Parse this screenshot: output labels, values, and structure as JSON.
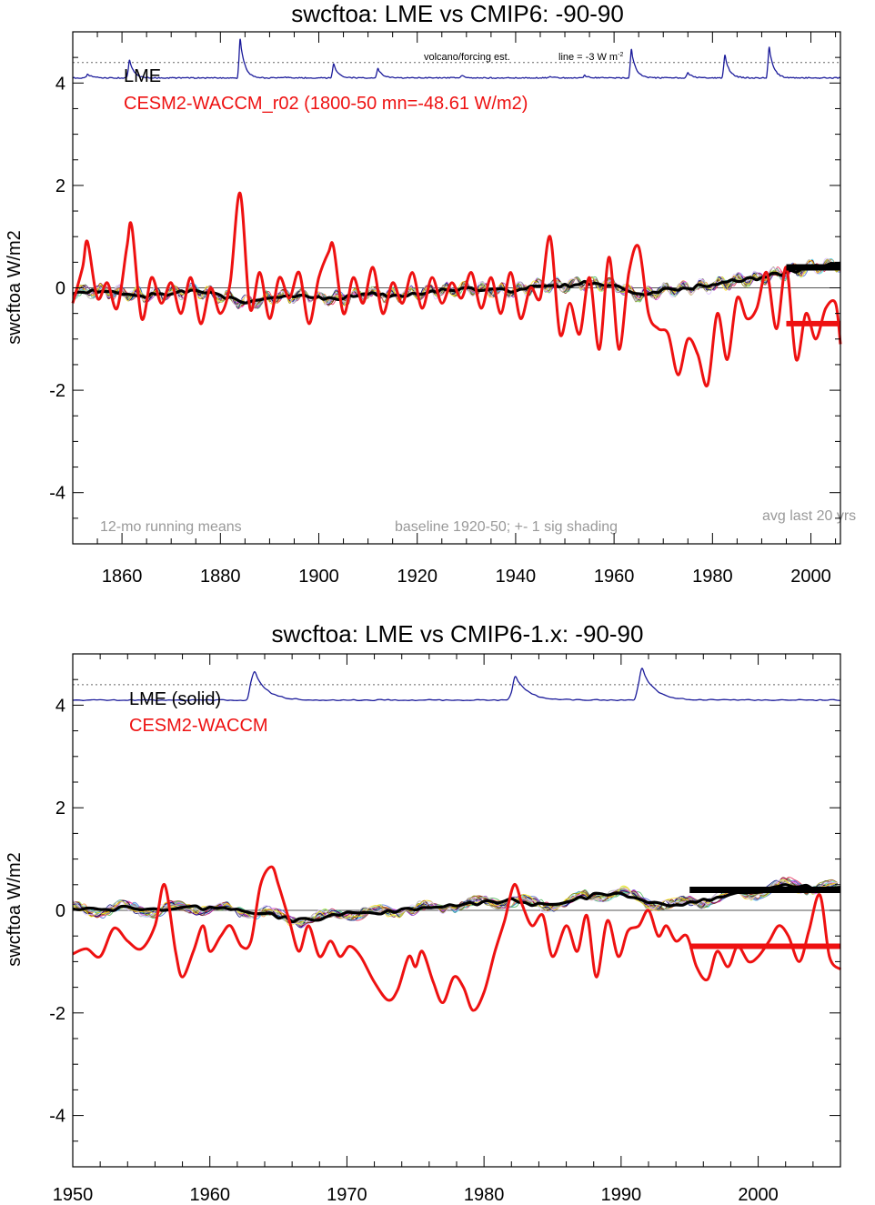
{
  "colors": {
    "lme": "#000000",
    "cesm": "#ee1111",
    "volcano": "#1a1a9a",
    "note": "#999999",
    "zero": "#555555"
  },
  "chart_data": [
    {
      "type": "line",
      "title": "swcftoa: LME vs CMIP6: -90-90",
      "xlabel": "",
      "ylabel": "swcftoa W/m2",
      "xlim": [
        1850,
        2006
      ],
      "ylim": [
        -5,
        5
      ],
      "xticks": [
        1860,
        1880,
        1900,
        1920,
        1940,
        1960,
        1980,
        2000
      ],
      "yticks": [
        -4,
        -2,
        0,
        2,
        4
      ],
      "legend": {
        "lme": "LME",
        "cesm": "CESM2-WACCM_r02 (1800-50 mn=-48.61 W/m2)"
      },
      "notes": {
        "volcano_label": "volcano/forcing est.",
        "volcano_line_label": "line = -3 W m",
        "volcano_line_sup": "-2",
        "running_means": "12-mo running means",
        "baseline": "baseline 1920-50; +- 1 sig shading",
        "avg_last": "avg last 20 yrs"
      },
      "volcano_baseline": 4.4,
      "volcano_events": [
        {
          "year": 1853,
          "peak": 4.18
        },
        {
          "year": 1861.5,
          "peak": 4.45
        },
        {
          "year": 1884,
          "peak": 4.85
        },
        {
          "year": 1893,
          "peak": 4.12
        },
        {
          "year": 1903,
          "peak": 4.38
        },
        {
          "year": 1912,
          "peak": 4.28
        },
        {
          "year": 1929,
          "peak": 4.15
        },
        {
          "year": 1947,
          "peak": 4.12
        },
        {
          "year": 1954,
          "peak": 4.15
        },
        {
          "year": 1963.5,
          "peak": 4.65
        },
        {
          "year": 1975,
          "peak": 4.2
        },
        {
          "year": 1982.5,
          "peak": 4.55
        },
        {
          "year": 1991.5,
          "peak": 4.7
        }
      ],
      "series": [
        {
          "name": "LME ensemble mean",
          "x": [
            1850,
            1855,
            1860,
            1865,
            1870,
            1875,
            1880,
            1885,
            1890,
            1895,
            1900,
            1905,
            1910,
            1915,
            1920,
            1925,
            1930,
            1935,
            1940,
            1945,
            1950,
            1955,
            1960,
            1965,
            1970,
            1975,
            1980,
            1985,
            1990,
            1995,
            2000,
            2005
          ],
          "y": [
            -0.1,
            -0.05,
            -0.1,
            -0.15,
            -0.1,
            -0.05,
            -0.15,
            -0.3,
            -0.2,
            -0.15,
            -0.2,
            -0.2,
            -0.1,
            -0.15,
            -0.1,
            -0.05,
            0.0,
            -0.05,
            -0.05,
            0.05,
            0.05,
            0.1,
            0.05,
            -0.15,
            -0.05,
            0.0,
            0.05,
            0.15,
            0.2,
            0.3,
            0.4,
            0.45
          ]
        },
        {
          "name": "CESM2-WACCM",
          "x": [
            1850,
            1852,
            1853,
            1855,
            1857,
            1859,
            1861,
            1862,
            1864,
            1866,
            1868,
            1870,
            1872,
            1874,
            1876,
            1878,
            1880,
            1882,
            1884,
            1886,
            1888,
            1890,
            1892,
            1894,
            1896,
            1898,
            1900,
            1902,
            1903,
            1905,
            1907,
            1909,
            1911,
            1913,
            1915,
            1917,
            1919,
            1921,
            1923,
            1925,
            1927,
            1929,
            1931,
            1933,
            1935,
            1937,
            1939,
            1941,
            1943,
            1945,
            1947,
            1949,
            1951,
            1953,
            1955,
            1957,
            1959,
            1961,
            1963,
            1965,
            1967,
            1969,
            1971,
            1973,
            1975,
            1977,
            1979,
            1981,
            1983,
            1985,
            1987,
            1989,
            1991,
            1993,
            1995,
            1997,
            1999,
            2001,
            2003,
            2005,
            2006
          ],
          "y": [
            -0.3,
            0.4,
            0.9,
            -0.2,
            0.1,
            -0.4,
            0.8,
            1.2,
            -0.6,
            0.2,
            -0.3,
            0.1,
            -0.5,
            0.2,
            -0.7,
            0.0,
            -0.5,
            0.1,
            1.85,
            -0.4,
            0.3,
            -0.6,
            0.2,
            -0.2,
            0.3,
            -0.7,
            0.2,
            0.7,
            0.8,
            -0.5,
            0.2,
            -0.3,
            0.4,
            -0.5,
            0.1,
            -0.3,
            0.3,
            -0.4,
            0.2,
            -0.3,
            0.1,
            -0.2,
            0.3,
            -0.4,
            0.2,
            -0.5,
            0.3,
            -0.6,
            0.0,
            -0.2,
            1.0,
            -0.9,
            -0.3,
            -0.9,
            0.2,
            -1.2,
            0.6,
            -1.2,
            0.3,
            0.8,
            -0.5,
            -0.8,
            -0.9,
            -1.7,
            -1.0,
            -1.3,
            -1.9,
            -0.5,
            -1.4,
            -0.2,
            -0.6,
            -0.4,
            0.3,
            -0.8,
            0.4,
            -1.4,
            -0.5,
            -1.0,
            -0.4,
            -0.3,
            -1.1
          ]
        }
      ],
      "avg_last_20yrs": {
        "lme": 0.4,
        "cesm": -0.7,
        "from": 1995,
        "to": 2006
      }
    },
    {
      "type": "line",
      "title": "swcftoa: LME vs CMIP6-1.x: -90-90",
      "xlabel": "",
      "ylabel": "swcftoa W/m2",
      "xlim": [
        1950,
        2006
      ],
      "ylim": [
        -5,
        5
      ],
      "xticks": [
        1950,
        1960,
        1970,
        1980,
        1990,
        2000
      ],
      "yticks": [
        -4,
        -2,
        0,
        2,
        4
      ],
      "legend": {
        "lme": "LME (solid)",
        "cesm": "CESM2-WACCM"
      },
      "volcano_baseline": 4.4,
      "volcano_events": [
        {
          "year": 1963.2,
          "peak": 4.68
        },
        {
          "year": 1982.3,
          "peak": 4.56
        },
        {
          "year": 1991.5,
          "peak": 4.72
        }
      ],
      "series": [
        {
          "name": "LME ensemble mean",
          "x": [
            1950,
            1952,
            1954,
            1956,
            1958,
            1960,
            1962,
            1964,
            1966,
            1968,
            1970,
            1972,
            1974,
            1976,
            1978,
            1980,
            1982,
            1984,
            1986,
            1988,
            1990,
            1992,
            1994,
            1996,
            1998,
            2000,
            2002,
            2004,
            2006
          ],
          "y": [
            0.05,
            0.0,
            0.05,
            0.0,
            0.05,
            0.05,
            0.0,
            -0.05,
            -0.2,
            -0.15,
            -0.05,
            -0.05,
            0.0,
            0.05,
            0.1,
            0.15,
            0.2,
            0.1,
            0.15,
            0.3,
            0.35,
            0.15,
            0.1,
            0.2,
            0.3,
            0.35,
            0.5,
            0.45,
            0.45
          ]
        },
        {
          "name": "CESM2-WACCM",
          "x": [
            1950,
            1951,
            1952,
            1953,
            1954,
            1955,
            1956,
            1956.7,
            1957.5,
            1958,
            1958.8,
            1959.5,
            1960,
            1960.8,
            1961.5,
            1962.3,
            1963,
            1963.7,
            1964.5,
            1965,
            1965.8,
            1966.5,
            1967.2,
            1968,
            1968.8,
            1969.5,
            1970.2,
            1971,
            1972,
            1973,
            1973.7,
            1974.5,
            1975,
            1975.5,
            1976.3,
            1977,
            1977.8,
            1978.5,
            1979.2,
            1980,
            1980.8,
            1981.5,
            1982.2,
            1982.8,
            1983.5,
            1984.3,
            1985,
            1986,
            1986.8,
            1987.5,
            1988.2,
            1989,
            1989.8,
            1990.5,
            1991.3,
            1992,
            1992.7,
            1993.3,
            1994,
            1994.8,
            1995.5,
            1996.3,
            1997,
            1997.8,
            1998.5,
            1999.3,
            2000,
            2000.8,
            2001.5,
            2002.2,
            2003,
            2003.7,
            2004.5,
            2005.2,
            2006
          ],
          "y": [
            -0.85,
            -0.75,
            -0.9,
            -0.35,
            -0.6,
            -0.75,
            -0.3,
            0.5,
            -0.8,
            -1.3,
            -0.8,
            -0.3,
            -0.8,
            -0.5,
            -0.3,
            -0.7,
            -0.6,
            0.5,
            0.85,
            0.5,
            -0.2,
            -0.8,
            -0.3,
            -0.9,
            -0.6,
            -0.9,
            -0.7,
            -0.9,
            -1.4,
            -1.75,
            -1.55,
            -0.9,
            -1.1,
            -0.8,
            -1.4,
            -1.8,
            -1.3,
            -1.5,
            -1.95,
            -1.6,
            -0.8,
            -0.2,
            0.5,
            0.1,
            -0.3,
            -0.1,
            -0.9,
            -0.3,
            -0.8,
            -0.1,
            -1.3,
            -0.2,
            -0.9,
            -0.4,
            -0.3,
            0.0,
            -0.5,
            -0.3,
            -0.6,
            -0.5,
            -1.1,
            -1.35,
            -0.8,
            -1.1,
            -0.7,
            -1.0,
            -0.9,
            -0.6,
            -0.3,
            -0.5,
            -1.0,
            -0.4,
            0.3,
            -0.9,
            -1.15
          ]
        }
      ],
      "avg_last_20yrs": {
        "lme": 0.4,
        "cesm": -0.7,
        "from": 1995,
        "to": 2006
      }
    }
  ]
}
